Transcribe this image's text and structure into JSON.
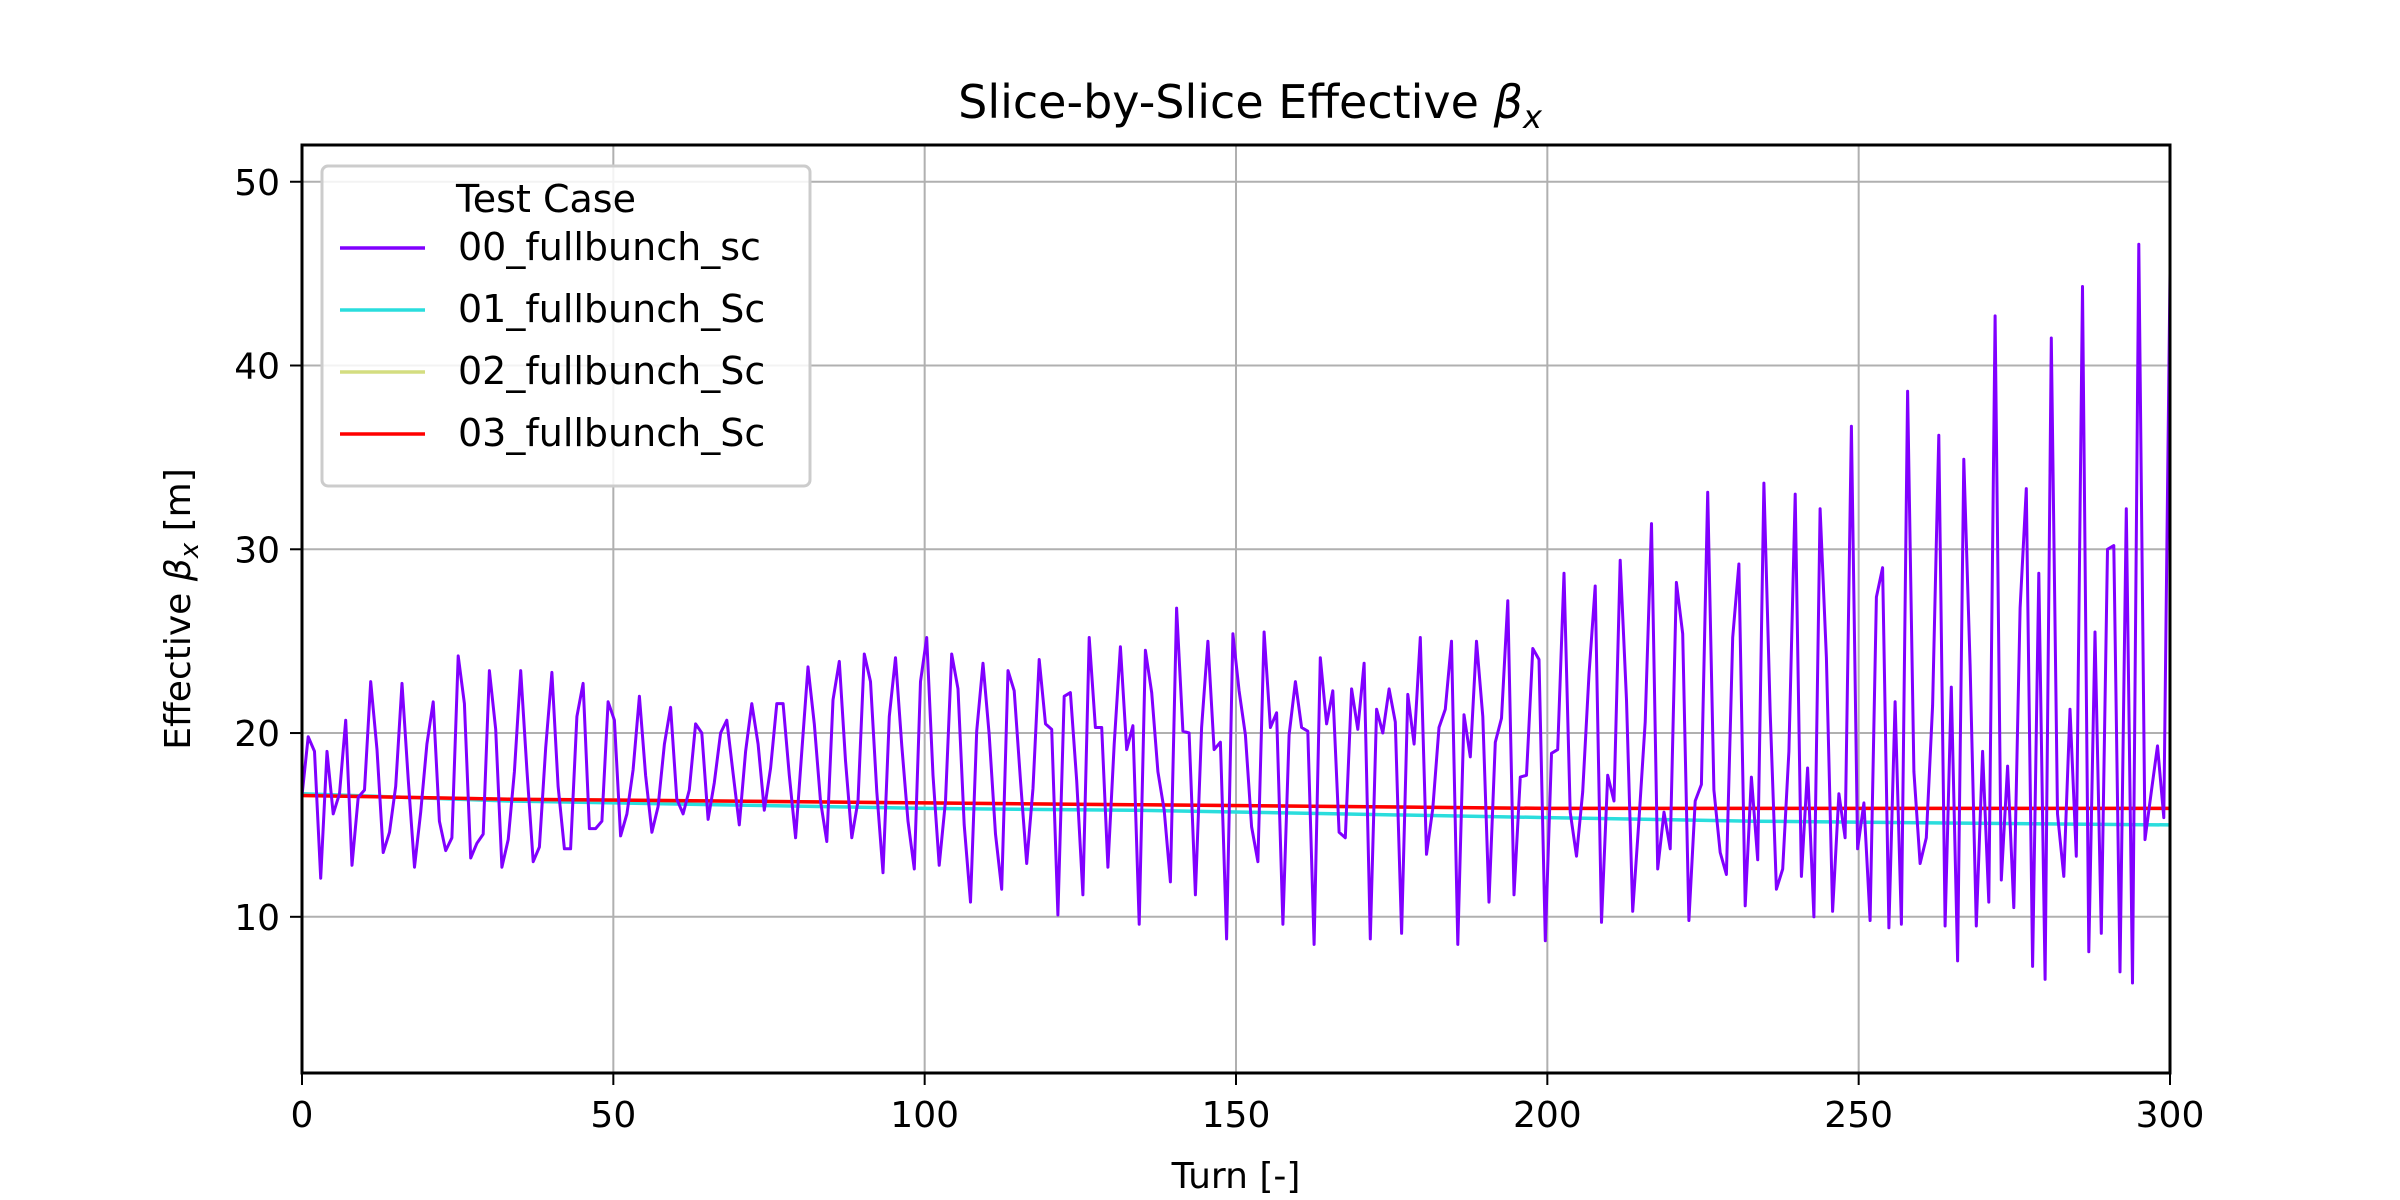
{
  "chart_data": {
    "type": "line",
    "title_text": "Slice-by-Slice Effective ",
    "title_symbol": "β",
    "title_sub": "x",
    "xlabel": "Turn [-]",
    "ylabel_text": "Effective ",
    "ylabel_symbol": "β",
    "ylabel_sub": "x",
    "ylabel_unit": " [m]",
    "xlim": [
      0,
      300
    ],
    "ylim": [
      1.5,
      52
    ],
    "xticks": [
      0,
      50,
      100,
      150,
      200,
      250,
      300
    ],
    "yticks": [
      10,
      20,
      30,
      40,
      50
    ],
    "grid": true,
    "legend": {
      "title": "Test Case",
      "placement": "upper-left"
    },
    "series": [
      {
        "name": "00_fullbunch_sc",
        "color": "#8000ff",
        "values": [
          16.6,
          19.8,
          19.0,
          12.1,
          19.0,
          15.6,
          16.7,
          20.7,
          12.8,
          16.5,
          16.9,
          22.8,
          19.1,
          13.5,
          14.6,
          17.1,
          22.7,
          17.5,
          12.7,
          15.7,
          19.4,
          21.7,
          15.2,
          13.6,
          14.3,
          24.2,
          21.6,
          13.2,
          14.0,
          14.5,
          23.4,
          20.2,
          12.7,
          14.2,
          17.9,
          23.4,
          18.0,
          13.0,
          13.8,
          19.2,
          23.3,
          17.1,
          13.7,
          13.7,
          20.9,
          22.7,
          14.8,
          14.8,
          15.2,
          21.7,
          20.7,
          14.4,
          15.6,
          18.0,
          22.0,
          17.7,
          14.6,
          16.0,
          19.4,
          21.4,
          16.4,
          15.6,
          16.9,
          20.5,
          20.0,
          15.3,
          17.3,
          20.0,
          20.7,
          17.8,
          15.0,
          19.0,
          21.6,
          19.4,
          15.8,
          18.1,
          21.6,
          21.6,
          17.7,
          14.3,
          19.0,
          23.6,
          20.5,
          16.3,
          14.1,
          21.8,
          23.9,
          18.5,
          14.3,
          16.3,
          24.3,
          22.8,
          16.8,
          12.4,
          20.9,
          24.1,
          19.3,
          15.2,
          12.6,
          22.8,
          25.2,
          17.7,
          12.8,
          16.3,
          24.3,
          22.4,
          15.0,
          10.8,
          20.1,
          23.8,
          19.9,
          14.5,
          11.5,
          23.4,
          22.3,
          17.4,
          12.9,
          17.0,
          24.0,
          20.5,
          20.2,
          10.1,
          22.0,
          22.2,
          17.4,
          11.2,
          25.2,
          20.3,
          20.3,
          12.7,
          19.4,
          24.7,
          19.1,
          20.4,
          9.6,
          24.5,
          22.2,
          17.9,
          15.8,
          11.9,
          26.8,
          20.1,
          20.0,
          11.2,
          20.3,
          25.0,
          19.1,
          19.5,
          8.8,
          25.4,
          22.3,
          19.9,
          14.9,
          13.0,
          25.5,
          20.3,
          21.1,
          9.6,
          19.9,
          22.8,
          20.3,
          20.1,
          8.5,
          24.1,
          20.5,
          22.3,
          14.6,
          14.3,
          22.4,
          20.2,
          23.8,
          8.8,
          21.3,
          20.0,
          22.4,
          20.6,
          9.1,
          22.1,
          19.4,
          25.2,
          13.4,
          15.9,
          20.3,
          21.3,
          25.0,
          8.5,
          21.0,
          18.7,
          25.0,
          20.9,
          10.8,
          19.5,
          20.8,
          27.2,
          11.2,
          17.6,
          17.7,
          24.6,
          24.0,
          8.7,
          18.9,
          19.1,
          28.7,
          15.7,
          13.3,
          16.8,
          23.2,
          28.0,
          9.7,
          17.7,
          16.3,
          29.4,
          21.8,
          10.3,
          15.3,
          20.6,
          31.4,
          12.6,
          15.7,
          13.7,
          28.2,
          25.4,
          9.8,
          16.3,
          17.2,
          33.1,
          16.9,
          13.5,
          12.3,
          25.2,
          29.2,
          10.6,
          17.6,
          13.1,
          33.6,
          21.1,
          11.5,
          12.6,
          19.0,
          33.0,
          12.2,
          18.1,
          10.0,
          32.2,
          24.1,
          10.3,
          16.7,
          14.3,
          36.7,
          13.7,
          16.2,
          9.8,
          27.4,
          29.0,
          9.4,
          21.7,
          9.6,
          38.6,
          17.9,
          12.9,
          14.3,
          21.5,
          36.2,
          9.5,
          22.5,
          7.6,
          34.9,
          23.7,
          9.5,
          19.0,
          10.8,
          42.7,
          12.0,
          18.2,
          10.5,
          26.8,
          33.3,
          7.3,
          28.7,
          6.6,
          41.5,
          15.6,
          12.2,
          21.3,
          13.3,
          44.3,
          8.1,
          25.5,
          9.1,
          30.0,
          30.2,
          7.0,
          32.2,
          6.4,
          46.6,
          14.2,
          16.8,
          19.3,
          15.4,
          45.0
        ]
      },
      {
        "name": "01_fullbunch_Sc",
        "color": "#2adddd",
        "values": [
          16.7,
          16.3,
          16.1,
          15.9,
          15.8,
          15.6,
          15.4,
          15.2,
          15.1,
          15.0
        ]
      },
      {
        "name": "02_fullbunch_Sc",
        "color": "#d4dd80",
        "values": [
          16.6,
          16.4,
          16.3,
          16.2,
          16.1,
          16.0,
          15.9,
          15.9,
          15.9,
          15.9
        ]
      },
      {
        "name": "03_fullbunch_Sc",
        "color": "#ff0000",
        "values": [
          16.6,
          16.4,
          16.3,
          16.2,
          16.1,
          16.0,
          15.9,
          15.9,
          15.9,
          15.9
        ]
      }
    ]
  }
}
